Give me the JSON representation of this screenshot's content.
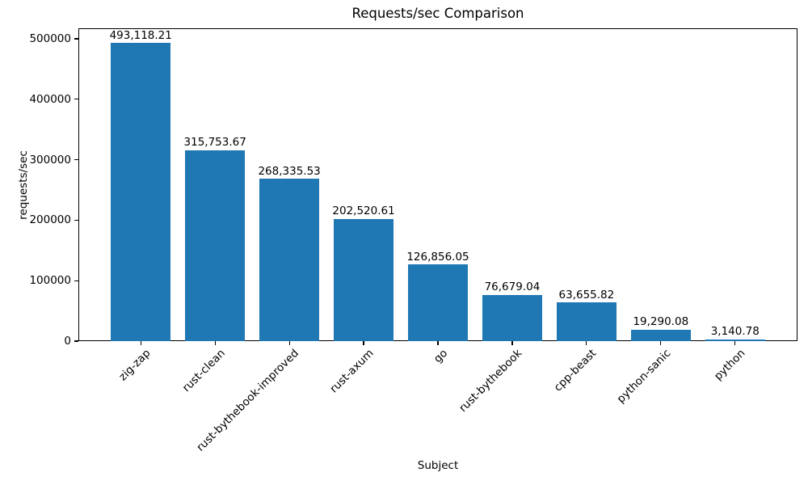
{
  "chart_data": {
    "type": "bar",
    "title": "Requests/sec Comparison",
    "xlabel": "Subject",
    "ylabel": "requests/sec",
    "categories": [
      "zig-zap",
      "rust-clean",
      "rust-bythebook-improved",
      "rust-axum",
      "go",
      "rust-bythebook",
      "cpp-beast",
      "python-sanic",
      "python"
    ],
    "values": [
      493118.21,
      315753.67,
      268335.53,
      202520.61,
      126856.05,
      76679.04,
      63655.82,
      19290.08,
      3140.78
    ],
    "value_labels": [
      "493,118.21",
      "315,753.67",
      "268,335.53",
      "202,520.61",
      "126,856.05",
      "76,679.04",
      "63,655.82",
      "19,290.08",
      "3,140.78"
    ],
    "yticks": [
      0,
      100000,
      200000,
      300000,
      400000,
      500000
    ],
    "ytick_labels": [
      "0",
      "100000",
      "200000",
      "300000",
      "400000",
      "500000"
    ],
    "ylim": [
      0,
      517380
    ],
    "xlim": [
      -0.84,
      8.84
    ],
    "bar_width": 0.8,
    "xtick_rotation_deg": 45,
    "grid": false,
    "legend_position": "none",
    "bar_color": "#1f77b4",
    "text_color": "#000000",
    "spine_color": "#000000",
    "background_color": "#ffffff"
  }
}
